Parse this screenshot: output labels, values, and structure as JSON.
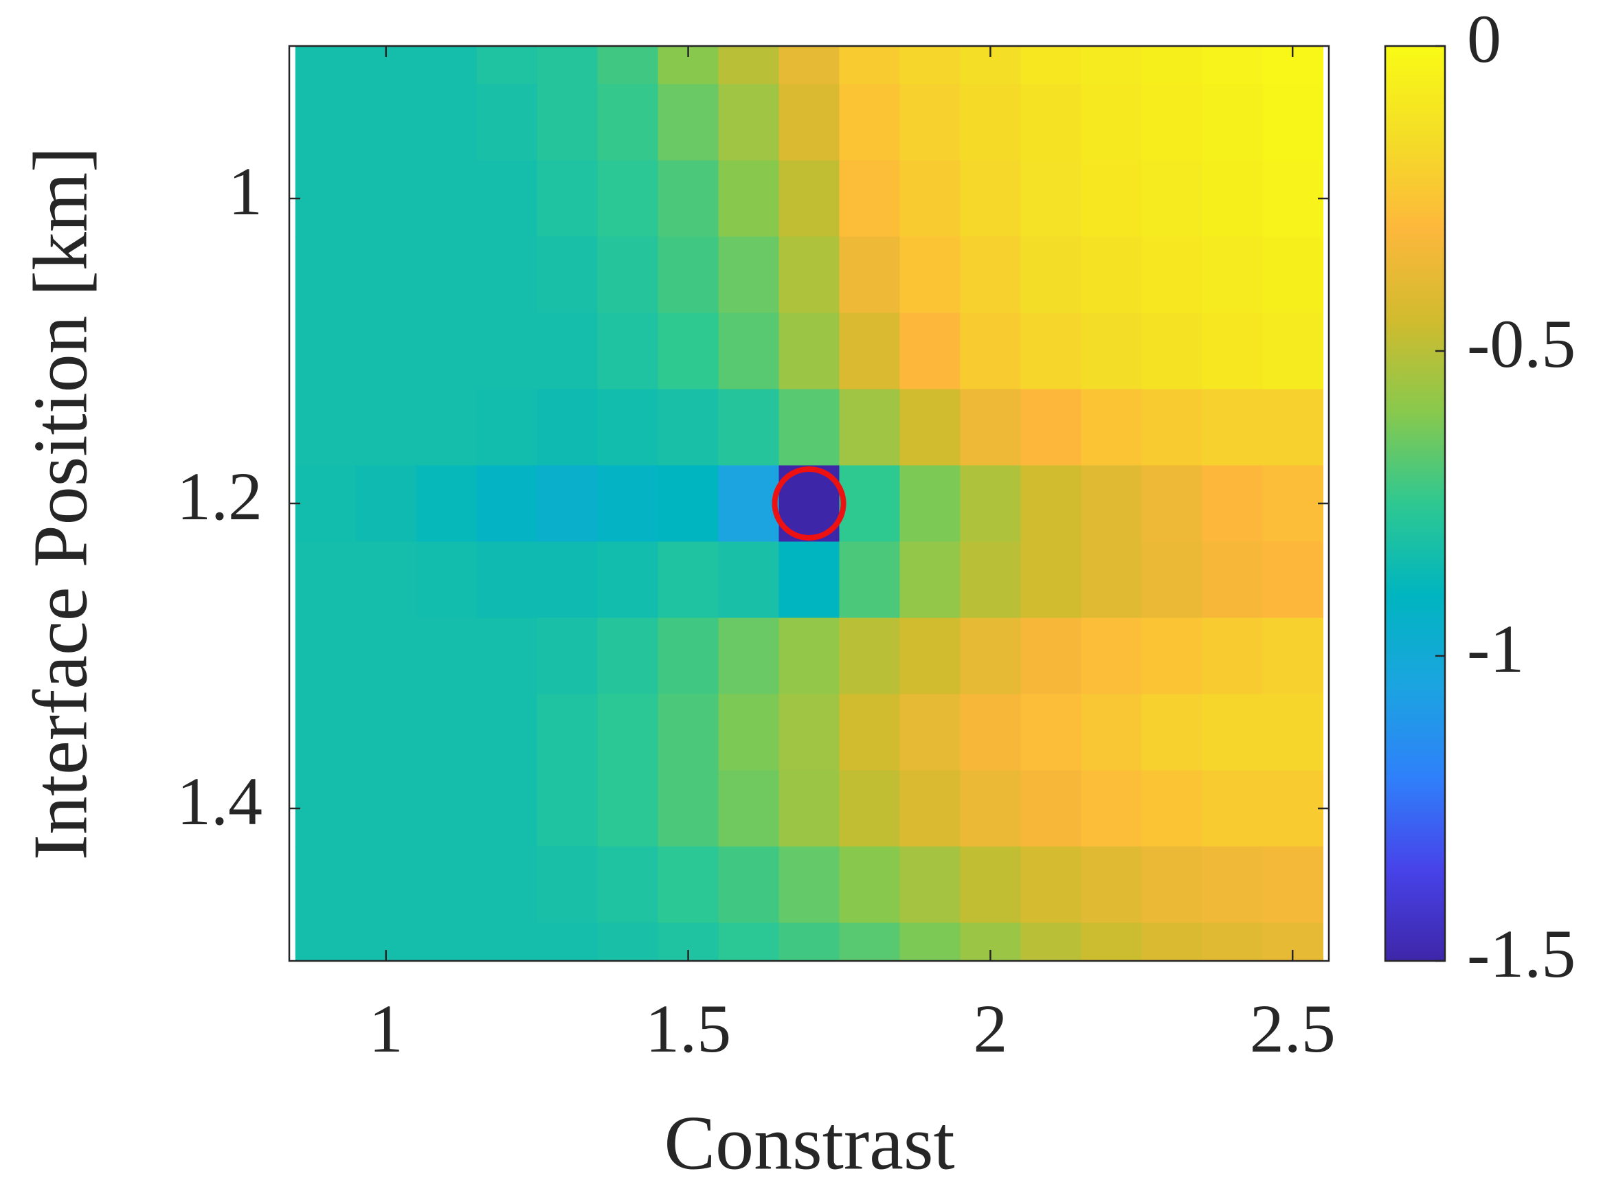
{
  "chart_data": {
    "type": "heatmap",
    "xlabel": "Constrast",
    "ylabel": "Interface Position [km]",
    "x": [
      0.9,
      1.0,
      1.1,
      1.2,
      1.3,
      1.4,
      1.5,
      1.6,
      1.7,
      1.8,
      1.9,
      2.0,
      2.1,
      2.2,
      2.3,
      2.4,
      2.5
    ],
    "y": [
      0.9,
      0.95,
      1.0,
      1.05,
      1.1,
      1.15,
      1.2,
      1.25,
      1.3,
      1.35,
      1.4,
      1.45,
      1.5
    ],
    "z": [
      [
        -0.83,
        -0.83,
        -0.83,
        -0.8,
        -0.78,
        -0.72,
        -0.6,
        -0.5,
        -0.38,
        -0.22,
        -0.18,
        -0.14,
        -0.1,
        -0.08,
        -0.06,
        -0.04,
        -0.02
      ],
      [
        -0.83,
        -0.83,
        -0.83,
        -0.82,
        -0.78,
        -0.74,
        -0.65,
        -0.55,
        -0.42,
        -0.25,
        -0.2,
        -0.16,
        -0.12,
        -0.09,
        -0.07,
        -0.05,
        -0.03
      ],
      [
        -0.83,
        -0.83,
        -0.83,
        -0.83,
        -0.8,
        -0.76,
        -0.7,
        -0.6,
        -0.48,
        -0.28,
        -0.22,
        -0.17,
        -0.13,
        -0.1,
        -0.08,
        -0.06,
        -0.04
      ],
      [
        -0.83,
        -0.83,
        -0.83,
        -0.83,
        -0.82,
        -0.78,
        -0.72,
        -0.65,
        -0.52,
        -0.35,
        -0.25,
        -0.2,
        -0.15,
        -0.12,
        -0.1,
        -0.08,
        -0.06
      ],
      [
        -0.83,
        -0.83,
        -0.83,
        -0.83,
        -0.83,
        -0.8,
        -0.75,
        -0.68,
        -0.56,
        -0.42,
        -0.3,
        -0.22,
        -0.18,
        -0.15,
        -0.12,
        -0.1,
        -0.08
      ],
      [
        -0.83,
        -0.83,
        -0.83,
        -0.84,
        -0.85,
        -0.84,
        -0.82,
        -0.78,
        -0.68,
        -0.55,
        -0.45,
        -0.35,
        -0.3,
        -0.25,
        -0.22,
        -0.2,
        -0.2
      ],
      [
        -0.84,
        -0.85,
        -0.88,
        -0.92,
        -0.95,
        -0.92,
        -0.9,
        -1.05,
        -1.5,
        -0.75,
        -0.62,
        -0.52,
        -0.45,
        -0.4,
        -0.35,
        -0.3,
        -0.28
      ],
      [
        -0.83,
        -0.83,
        -0.84,
        -0.85,
        -0.85,
        -0.84,
        -0.8,
        -0.82,
        -0.9,
        -0.7,
        -0.58,
        -0.5,
        -0.45,
        -0.4,
        -0.36,
        -0.32,
        -0.3
      ],
      [
        -0.83,
        -0.83,
        -0.83,
        -0.83,
        -0.82,
        -0.78,
        -0.72,
        -0.65,
        -0.58,
        -0.5,
        -0.45,
        -0.38,
        -0.32,
        -0.28,
        -0.25,
        -0.22,
        -0.2
      ],
      [
        -0.83,
        -0.83,
        -0.83,
        -0.83,
        -0.8,
        -0.76,
        -0.7,
        -0.62,
        -0.55,
        -0.45,
        -0.38,
        -0.32,
        -0.28,
        -0.24,
        -0.2,
        -0.18,
        -0.18
      ],
      [
        -0.83,
        -0.83,
        -0.83,
        -0.83,
        -0.8,
        -0.76,
        -0.7,
        -0.64,
        -0.56,
        -0.48,
        -0.42,
        -0.36,
        -0.32,
        -0.28,
        -0.25,
        -0.22,
        -0.22
      ],
      [
        -0.83,
        -0.83,
        -0.83,
        -0.83,
        -0.82,
        -0.8,
        -0.76,
        -0.72,
        -0.66,
        -0.6,
        -0.54,
        -0.48,
        -0.44,
        -0.4,
        -0.36,
        -0.34,
        -0.33
      ],
      [
        -0.83,
        -0.83,
        -0.83,
        -0.83,
        -0.83,
        -0.82,
        -0.8,
        -0.76,
        -0.72,
        -0.68,
        -0.62,
        -0.56,
        -0.5,
        -0.46,
        -0.42,
        -0.4,
        -0.38
      ]
    ],
    "xlim": [
      0.84,
      2.56
    ],
    "ylim": [
      0.9,
      1.5
    ],
    "y_direction": "reverse",
    "xticks": [
      1,
      1.5,
      2,
      2.5
    ],
    "yticks": [
      1,
      1.2,
      1.4
    ],
    "clim": [
      -1.5,
      0
    ],
    "cticks": [
      -1.5,
      -1,
      -0.5,
      0
    ],
    "colormap": [
      "#3e26a8",
      "#4743e9",
      "#2f80fa",
      "#1ba4e0",
      "#00b5c0",
      "#2ec891",
      "#88c94d",
      "#d1bb2e",
      "#fdb83c",
      "#f4dd27",
      "#f9fb15"
    ],
    "marker": {
      "x": 1.7,
      "y": 1.2,
      "color": "#ee1111"
    }
  }
}
